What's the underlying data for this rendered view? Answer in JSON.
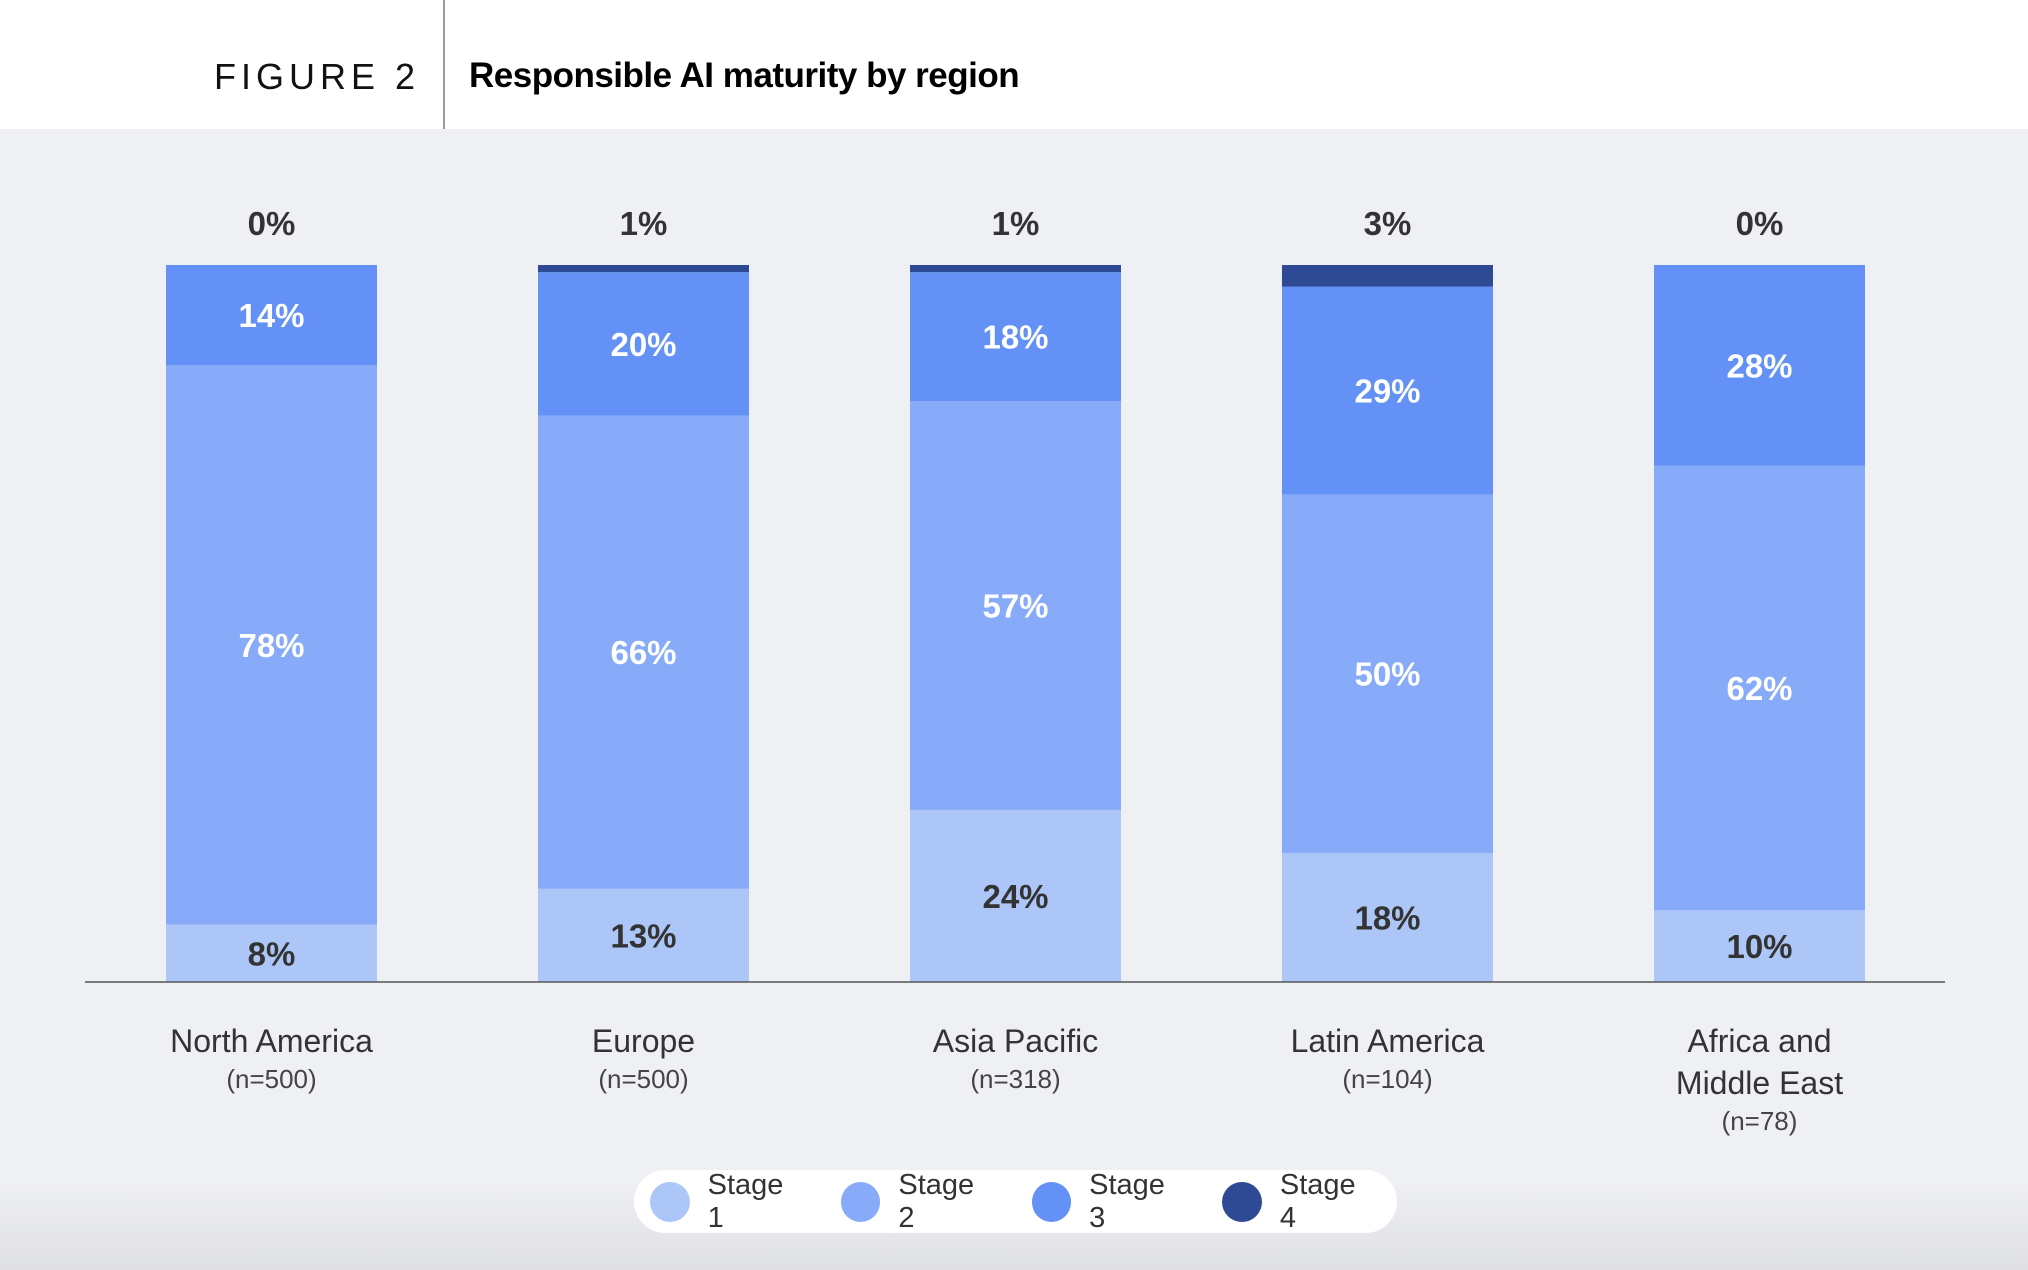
{
  "header": {
    "figure_label": "FIGURE 2",
    "title": "Responsible AI maturity by region"
  },
  "chart_data": {
    "type": "bar",
    "stacked": true,
    "title": "Responsible AI maturity by region",
    "categories": [
      "North America",
      "Europe",
      "Asia Pacific",
      "Latin America",
      "Africa and Middle East"
    ],
    "category_notes": [
      "(n=500)",
      "(n=500)",
      "(n=318)",
      "(n=104)",
      "(n=78)"
    ],
    "series": [
      {
        "name": "Stage 1",
        "color": "#adc6f8",
        "values": [
          8,
          13,
          24,
          18,
          10
        ]
      },
      {
        "name": "Stage 2",
        "color": "#87abf8",
        "values": [
          78,
          66,
          57,
          50,
          62
        ]
      },
      {
        "name": "Stage 3",
        "color": "#6391f5",
        "values": [
          14,
          20,
          18,
          29,
          28
        ]
      },
      {
        "name": "Stage 4",
        "color": "#2f4a94",
        "values": [
          0,
          1,
          1,
          3,
          0
        ]
      }
    ],
    "ylim": [
      0,
      100
    ],
    "unit": "%",
    "grid": false,
    "legend_position": "bottom"
  }
}
